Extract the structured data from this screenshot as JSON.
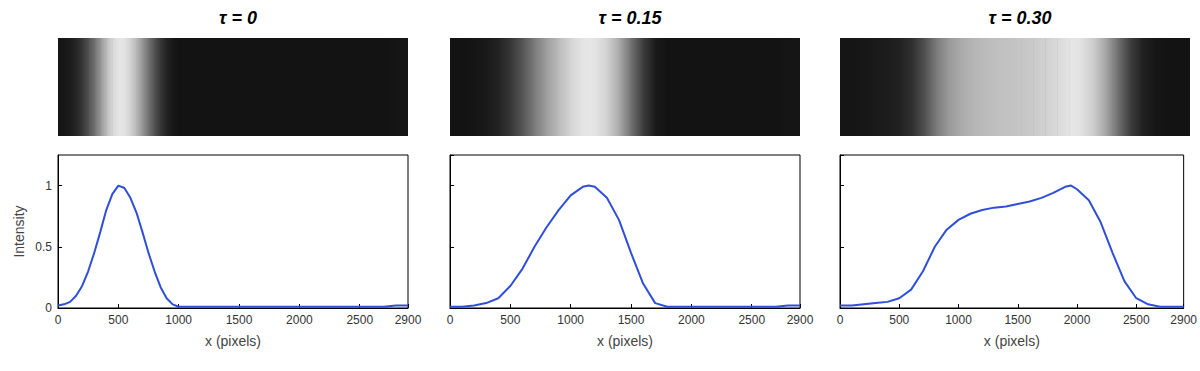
{
  "chart_data": [
    {
      "type": "line",
      "title": "τ = 0",
      "xlabel": "x (pixels)",
      "ylabel": "Intensity",
      "x": [
        0,
        50,
        100,
        150,
        200,
        250,
        300,
        350,
        400,
        450,
        500,
        550,
        600,
        650,
        700,
        750,
        800,
        850,
        900,
        950,
        1000,
        1100,
        1200,
        1300,
        1400,
        1500,
        1600,
        1700,
        1800,
        1900,
        2000,
        2100,
        2200,
        2300,
        2400,
        2500,
        2600,
        2700,
        2800,
        2900
      ],
      "values": [
        0.02,
        0.03,
        0.05,
        0.1,
        0.18,
        0.3,
        0.45,
        0.62,
        0.8,
        0.93,
        1.0,
        0.98,
        0.9,
        0.78,
        0.62,
        0.45,
        0.3,
        0.17,
        0.08,
        0.03,
        0.01,
        0.01,
        0.01,
        0.01,
        0.01,
        0.01,
        0.01,
        0.01,
        0.01,
        0.01,
        0.01,
        0.01,
        0.01,
        0.01,
        0.01,
        0.01,
        0.01,
        0.01,
        0.02,
        0.02
      ],
      "color": "#2f4fd9",
      "xlim": [
        0,
        2900
      ],
      "xticks": [
        0,
        500,
        1000,
        1500,
        2000,
        2500
      ],
      "ylim": [
        0,
        1.25
      ],
      "yticks": [
        0,
        0.5,
        1
      ],
      "grid": false
    },
    {
      "type": "line",
      "title": "τ = 0.15",
      "xlabel": "x (pixels)",
      "x": [
        0,
        100,
        200,
        300,
        400,
        500,
        600,
        700,
        800,
        900,
        1000,
        1100,
        1150,
        1200,
        1300,
        1400,
        1500,
        1600,
        1700,
        1800,
        1900,
        2000,
        2100,
        2200,
        2300,
        2400,
        2500,
        2600,
        2700,
        2800,
        2900
      ],
      "values": [
        0.01,
        0.01,
        0.02,
        0.04,
        0.08,
        0.18,
        0.32,
        0.5,
        0.66,
        0.8,
        0.92,
        0.99,
        1.0,
        0.99,
        0.9,
        0.72,
        0.45,
        0.2,
        0.04,
        0.01,
        0.01,
        0.01,
        0.01,
        0.01,
        0.01,
        0.01,
        0.01,
        0.01,
        0.01,
        0.02,
        0.02
      ],
      "color": "#2f4fd9",
      "xlim": [
        0,
        2900
      ],
      "xticks": [
        0,
        500,
        1000,
        1500,
        2000,
        2500
      ],
      "ylim": [
        0,
        1.25
      ],
      "yticks": [
        0,
        0.5,
        1
      ],
      "grid": false,
      "tick_labels": "x"
    },
    {
      "type": "line",
      "title": "τ = 0.30",
      "xlabel": "x (pixels)",
      "x": [
        0,
        100,
        200,
        300,
        400,
        500,
        600,
        700,
        800,
        900,
        1000,
        1100,
        1200,
        1300,
        1400,
        1500,
        1600,
        1700,
        1800,
        1900,
        1950,
        2000,
        2100,
        2200,
        2300,
        2400,
        2500,
        2600,
        2700,
        2800,
        2900
      ],
      "values": [
        0.02,
        0.02,
        0.03,
        0.04,
        0.05,
        0.08,
        0.15,
        0.3,
        0.5,
        0.64,
        0.72,
        0.77,
        0.8,
        0.82,
        0.83,
        0.85,
        0.87,
        0.9,
        0.94,
        0.99,
        1.0,
        0.97,
        0.88,
        0.7,
        0.45,
        0.22,
        0.08,
        0.03,
        0.01,
        0.01,
        0.01
      ],
      "color": "#2f4fd9",
      "xlim": [
        0,
        2900
      ],
      "xticks": [
        0,
        500,
        1000,
        1500,
        2000,
        2500
      ],
      "ylim": [
        0,
        1.25
      ],
      "yticks": [
        0,
        0.5,
        1
      ],
      "grid": false,
      "tick_labels": "x"
    }
  ]
}
